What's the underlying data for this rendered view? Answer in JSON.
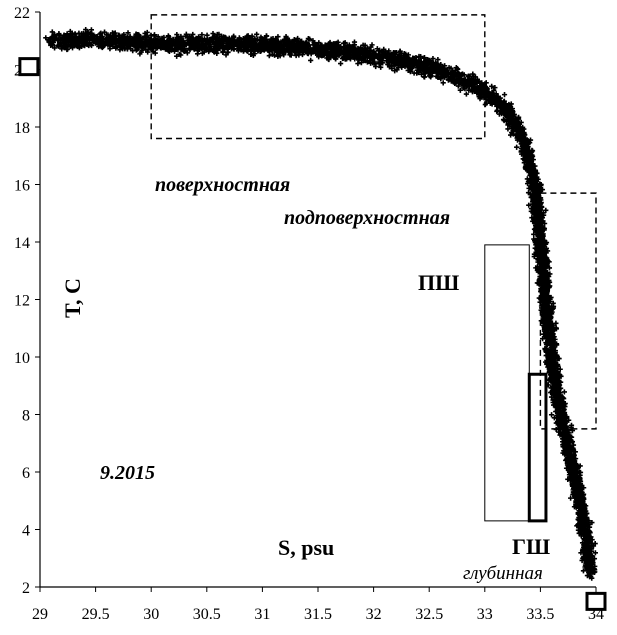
{
  "chart_data": {
    "type": "scatter",
    "title": "",
    "xlabel": "S, psu",
    "ylabel": "T, C",
    "xlim": [
      29,
      34
    ],
    "ylim": [
      2,
      22
    ],
    "x_ticks": [
      "29",
      "29.5",
      "30",
      "30.5",
      "31",
      "31.5",
      "32",
      "32.5",
      "33",
      "33.5",
      "34"
    ],
    "y_ticks": [
      "2",
      "4",
      "6",
      "8",
      "10",
      "12",
      "14",
      "16",
      "18",
      "20",
      "22"
    ],
    "grid": false,
    "date_label": "9.2015",
    "water_mass_labels": {
      "surface": "поверхностная",
      "subsurface": "подповерхностная",
      "pshch": "ПШ",
      "gshch": "ГШ",
      "deep": "глубинная"
    },
    "series": [
      {
        "marker": "plus",
        "color": "#000000",
        "trend": [
          [
            29.1,
            21.0
          ],
          [
            29.5,
            21.05
          ],
          [
            30.0,
            20.9
          ],
          [
            30.5,
            20.9
          ],
          [
            31.0,
            20.85
          ],
          [
            31.5,
            20.7
          ],
          [
            32.0,
            20.5
          ],
          [
            32.5,
            20.1
          ],
          [
            32.9,
            19.5
          ],
          [
            33.2,
            18.6
          ],
          [
            33.35,
            17.5
          ],
          [
            33.45,
            16.0
          ],
          [
            33.5,
            14.0
          ],
          [
            33.55,
            12.0
          ],
          [
            33.6,
            10.0
          ],
          [
            33.68,
            8.0
          ],
          [
            33.8,
            6.0
          ],
          [
            33.9,
            4.0
          ],
          [
            33.95,
            2.5
          ]
        ]
      }
    ],
    "reference_markers": [
      {
        "x": 28.9,
        "y": 20.1
      },
      {
        "x": 34.0,
        "y": 1.5
      }
    ],
    "regions": [
      {
        "name": "surface-box",
        "style": "dashed",
        "x": [
          30.0,
          33.0
        ],
        "y": [
          17.6,
          21.9
        ]
      },
      {
        "name": "subsurface-box",
        "style": "dashed",
        "x": [
          33.5,
          34.0
        ],
        "y": [
          7.5,
          15.7
        ]
      },
      {
        "name": "pshch-box",
        "style": "thin",
        "x": [
          33.0,
          33.4
        ],
        "y": [
          4.3,
          13.9
        ]
      },
      {
        "name": "gshch-box",
        "style": "thick",
        "x": [
          33.4,
          33.55
        ],
        "y": [
          4.3,
          9.4
        ]
      }
    ]
  }
}
